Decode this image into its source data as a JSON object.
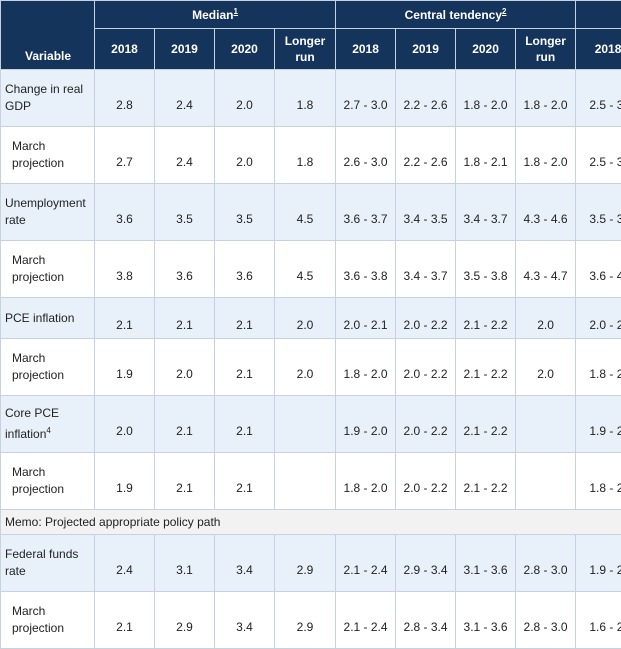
{
  "header": {
    "variable": "Variable",
    "groups": [
      {
        "label": "Median",
        "note": "1"
      },
      {
        "label": "Central tendency",
        "note": "2"
      },
      {
        "label": "",
        "note": ""
      }
    ],
    "cols": [
      "2018",
      "2019",
      "2020",
      "Longer run",
      "2018",
      "2019",
      "2020",
      "Longer run",
      "2018"
    ]
  },
  "rows": [
    {
      "label": "Change in real GDP",
      "note": "",
      "cells": [
        "2.8",
        "2.4",
        "2.0",
        "1.8",
        "2.7 - 3.0",
        "2.2 - 2.6",
        "1.8 - 2.0",
        "1.8 - 2.0",
        "2.5 - 3."
      ]
    },
    {
      "label": "March projection",
      "note": "",
      "cells": [
        "2.7",
        "2.4",
        "2.0",
        "1.8",
        "2.6 - 3.0",
        "2.2 - 2.6",
        "1.8 - 2.1",
        "1.8 - 2.0",
        "2.5 - 3."
      ]
    },
    {
      "label": "Unemployment rate",
      "note": "",
      "cells": [
        "3.6",
        "3.5",
        "3.5",
        "4.5",
        "3.6 - 3.7",
        "3.4 - 3.5",
        "3.4 - 3.7",
        "4.3 - 4.6",
        "3.5 - 3."
      ]
    },
    {
      "label": "March projection",
      "note": "",
      "cells": [
        "3.8",
        "3.6",
        "3.6",
        "4.5",
        "3.6 - 3.8",
        "3.4 - 3.7",
        "3.5 - 3.8",
        "4.3 - 4.7",
        "3.6 - 4."
      ]
    },
    {
      "label": "PCE inflation",
      "note": "",
      "cells": [
        "2.1",
        "2.1",
        "2.1",
        "2.0",
        "2.0 - 2.1",
        "2.0 - 2.2",
        "2.1 - 2.2",
        "2.0",
        "2.0 - 2."
      ]
    },
    {
      "label": "March projection",
      "note": "",
      "cells": [
        "1.9",
        "2.0",
        "2.1",
        "2.0",
        "1.8 - 2.0",
        "2.0 - 2.2",
        "2.1 - 2.2",
        "2.0",
        "1.8 - 2."
      ]
    },
    {
      "label": "Core PCE inflation",
      "note": "4",
      "cells": [
        "2.0",
        "2.1",
        "2.1",
        "",
        "1.9 - 2.0",
        "2.0 - 2.2",
        "2.1 - 2.2",
        "",
        "1.9 - 2."
      ]
    },
    {
      "label": "March projection",
      "note": "",
      "cells": [
        "1.9",
        "2.1",
        "2.1",
        "",
        "1.8 - 2.0",
        "2.0 - 2.2",
        "2.1 - 2.2",
        "",
        "1.8 - 2."
      ]
    },
    {
      "memo": "Memo: Projected appropriate policy path"
    },
    {
      "label": "Federal funds rate",
      "note": "",
      "cells": [
        "2.4",
        "3.1",
        "3.4",
        "2.9",
        "2.1 - 2.4",
        "2.9 - 3.4",
        "3.1 - 3.6",
        "2.8 - 3.0",
        "1.9 - 2."
      ]
    },
    {
      "label": "March projection",
      "note": "",
      "cells": [
        "2.1",
        "2.9",
        "3.4",
        "2.9",
        "2.1 - 2.4",
        "2.8 - 3.4",
        "3.1 - 3.6",
        "2.8 - 3.0",
        "1.6 - 2."
      ]
    }
  ],
  "colors": {
    "header_bg": "#15345c",
    "shade_bg": "#e8f1fa",
    "memo_bg": "#f2f2f2",
    "border": "#c6d2e0"
  }
}
